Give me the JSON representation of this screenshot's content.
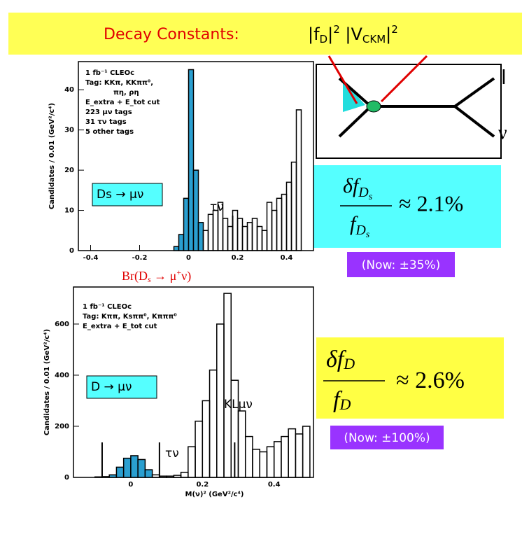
{
  "header": {
    "title": "Decay Constants:",
    "formula": [
      "|f",
      "D",
      "|",
      "2",
      " |V",
      "CKM",
      "|",
      "2"
    ]
  },
  "diagram": {
    "lepton": "l",
    "neutrino": "ν"
  },
  "results": [
    {
      "numerator": [
        "δf",
        "D",
        "s"
      ],
      "denominator": [
        "f",
        "D",
        "s"
      ],
      "approx": "≈ 2.1%",
      "now": "(Now: ±35%)"
    },
    {
      "numerator": [
        "δf",
        "D"
      ],
      "denominator": [
        "f",
        "D"
      ],
      "approx": "≈ 2.6%",
      "now": "(Now: ±100%)"
    }
  ],
  "branching_label": [
    "Br(D",
    "s",
    " → μ",
    "+",
    "ν)"
  ],
  "chart_data": [
    {
      "type": "histogram",
      "ylabel": "Candidates / 0.01 (GeV²/c⁴)",
      "notes": [
        "1 fb⁻¹ CLEOc",
        "Tag: KKπ, KKππ⁰,",
        "πη, ρη",
        "E_extra + E_tot cut",
        "223 μν tags",
        "31 τν tags",
        "5 other tags"
      ],
      "box_label": "Ds → μν",
      "annotations": [
        "τν"
      ],
      "bins": [
        -0.06,
        -0.04,
        -0.02,
        0,
        0.02,
        0.04,
        0.06,
        0.08,
        0.1,
        0.12,
        0.14,
        0.16,
        0.18,
        0.2,
        0.22,
        0.24,
        0.26,
        0.28,
        0.3,
        0.32,
        0.34,
        0.36,
        0.38,
        0.4,
        0.42,
        0.44,
        0.46
      ],
      "values": [
        1,
        4,
        13,
        45,
        20,
        7,
        5,
        9,
        10,
        12,
        8,
        6,
        10,
        8,
        6,
        7,
        8,
        6,
        5,
        12,
        10,
        13,
        14,
        17,
        22,
        35
      ],
      "colors": [
        "#2a9fd0",
        "#2a9fd0",
        "#2a9fd0",
        "#2a9fd0",
        "#2a9fd0",
        "#2a9fd0",
        "none",
        "none",
        "none",
        "none",
        "none",
        "none",
        "none",
        "none",
        "none",
        "none",
        "none",
        "none",
        "none",
        "none",
        "none",
        "none",
        "none",
        "none",
        "none",
        "none"
      ],
      "xlim": [
        -0.45,
        0.51
      ],
      "ylim": [
        0,
        47
      ],
      "xticks": [
        -0.4,
        -0.2,
        0,
        0.2,
        0.4
      ],
      "yticks": [
        0,
        10,
        20,
        30,
        40
      ]
    },
    {
      "type": "histogram",
      "ylabel": "Candidates / 0.01 (GeV²/c⁴)",
      "xlabel": "M(ν)² (GeV²/c⁴)",
      "notes": [
        "1 fb⁻¹ CLEOc",
        "Tag: Kππ, Ksππ⁰, Kπππ⁰",
        "E_extra + E_tot cut"
      ],
      "box_label": "D → μν",
      "annotations": [
        "KLμν",
        "τν"
      ],
      "bins": [
        -0.1,
        -0.08,
        -0.06,
        -0.04,
        -0.02,
        0,
        0.02,
        0.04,
        0.06,
        0.08,
        0.1,
        0.12,
        0.14,
        0.16,
        0.18,
        0.2,
        0.22,
        0.24,
        0.26,
        0.28,
        0.3,
        0.32,
        0.34,
        0.36,
        0.38,
        0.4,
        0.42,
        0.44,
        0.46,
        0.48,
        0.5
      ],
      "values": [
        2,
        3,
        10,
        40,
        75,
        85,
        70,
        30,
        10,
        5,
        5,
        8,
        20,
        120,
        220,
        300,
        420,
        600,
        720,
        380,
        260,
        160,
        110,
        100,
        120,
        140,
        160,
        190,
        170,
        200
      ],
      "colors": [
        "none",
        "none",
        "#2a9fd0",
        "#2a9fd0",
        "#2a9fd0",
        "#2a9fd0",
        "#2a9fd0",
        "#2a9fd0",
        "none",
        "none",
        "none",
        "none",
        "none",
        "none",
        "none",
        "none",
        "none",
        "none",
        "none",
        "none",
        "none",
        "none",
        "none",
        "none",
        "none",
        "none",
        "none",
        "none",
        "none",
        "none"
      ],
      "xlim": [
        -0.16,
        0.51
      ],
      "ylim": [
        0,
        745
      ],
      "xticks": [
        0,
        0.2,
        0.4
      ],
      "yticks": [
        0,
        200,
        400,
        600
      ]
    }
  ]
}
